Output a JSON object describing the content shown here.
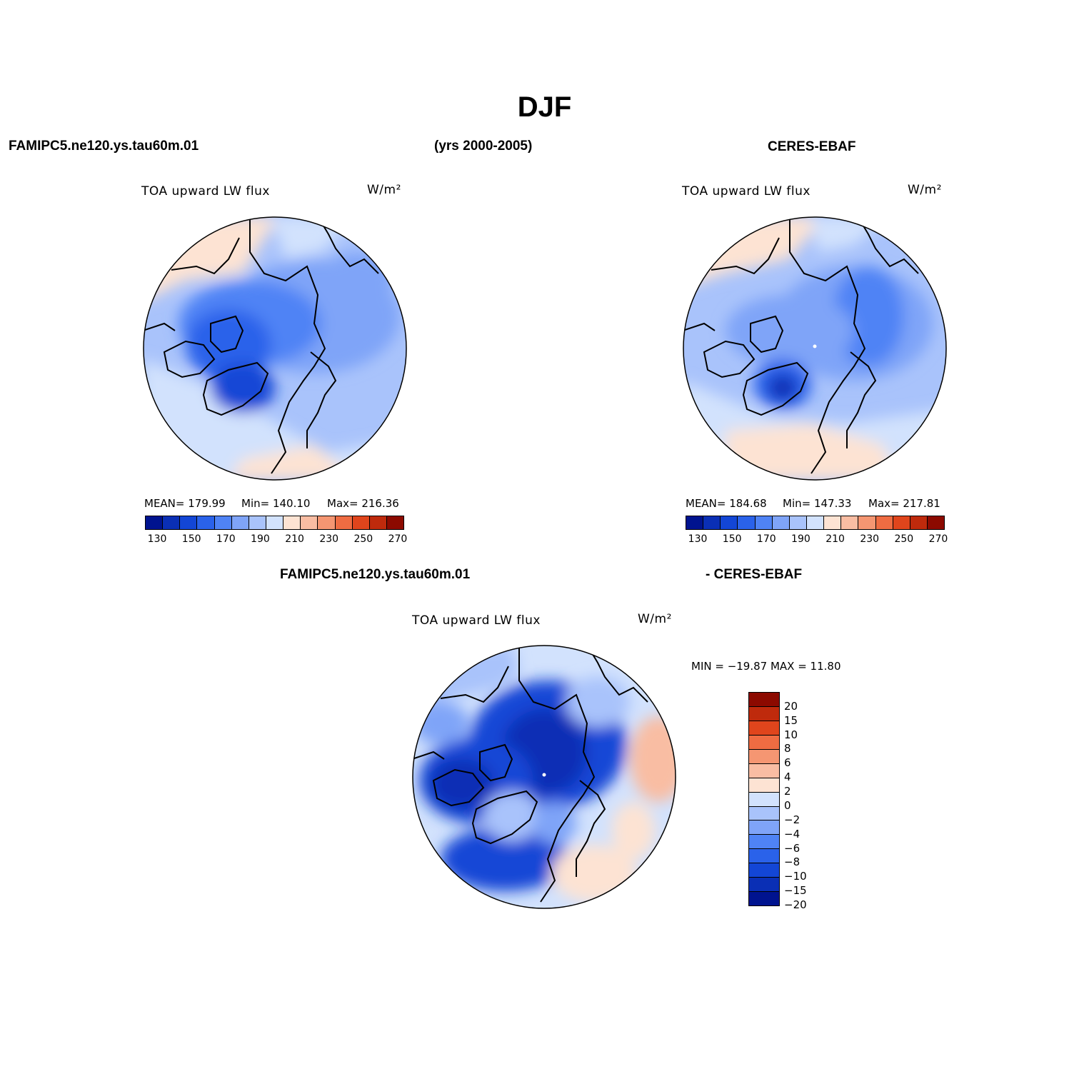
{
  "title": "DJF",
  "top_left_case": "FAMIPC5.ne120.ys.tau60m.01",
  "years": "(yrs 2000-2005)",
  "top_right_case": "CERES-EBAF",
  "panels": [
    {
      "variable": "TOA upward LW flux",
      "units": "W/m²",
      "stats": {
        "mean": "MEAN= 179.99",
        "min": "Min= 140.10",
        "max": "Max= 216.36"
      }
    },
    {
      "variable": "TOA upward LW flux",
      "units": "W/m²",
      "stats": {
        "mean": "MEAN= 184.68",
        "min": "Min= 147.33",
        "max": "Max= 217.81"
      }
    }
  ],
  "colorbar_main": {
    "colors": [
      "#00138f",
      "#0a2fb5",
      "#1346d6",
      "#2a62ea",
      "#4f83f5",
      "#7fa4f8",
      "#a9c3fb",
      "#d2e2fd",
      "#fde3d3",
      "#f9bda3",
      "#f59672",
      "#ef6c42",
      "#e0451c",
      "#bf2a0c",
      "#8c0a00"
    ],
    "tick_labels": [
      "130",
      "150",
      "170",
      "190",
      "210",
      "230",
      "250",
      "270"
    ]
  },
  "diff": {
    "left_label": "FAMIPC5.ne120.ys.tau60m.01",
    "right_label": "- CERES-EBAF",
    "variable": "TOA upward LW flux",
    "units": "W/m²",
    "minmax": "MIN = −19.87 MAX =   11.80",
    "colorbar": {
      "colors_top_to_bottom": [
        "#8c0a00",
        "#bf2a0c",
        "#e0451c",
        "#ef6c42",
        "#f59672",
        "#f9bda3",
        "#fde3d3",
        "#d2e2fd",
        "#a9c3fb",
        "#7fa4f8",
        "#4f83f5",
        "#2a62ea",
        "#1346d6",
        "#0a2fb5",
        "#00138f"
      ],
      "tick_labels": [
        "20",
        "15",
        "10",
        "8",
        "6",
        "4",
        "2",
        "0",
        "−2",
        "−4",
        "−6",
        "−8",
        "−10",
        "−15",
        "−20"
      ]
    }
  }
}
